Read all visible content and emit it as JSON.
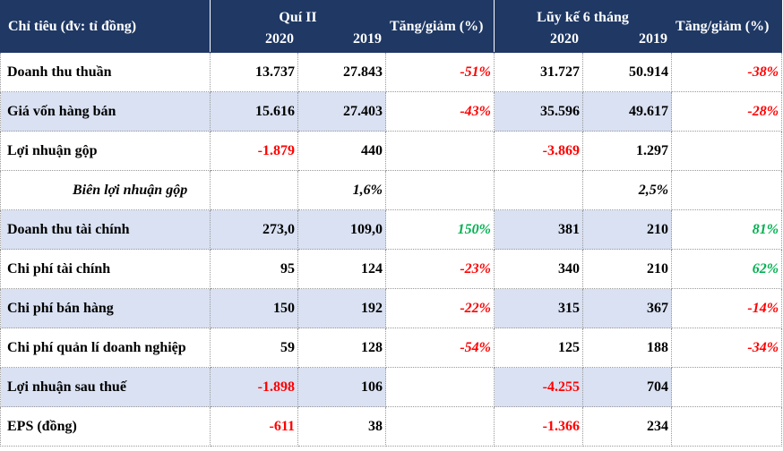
{
  "header": {
    "indicator": "Chỉ tiêu (đv: tỉ đồng)",
    "quarter_group": "Quí II",
    "ytd_group": "Lũy kế 6 tháng",
    "change_label": "Tăng/giảm (%)",
    "change_label_2": "Tăng/giảm (%)",
    "years": [
      "2020",
      "2019",
      "2020",
      "2019"
    ]
  },
  "rows": [
    {
      "label": "Doanh thu thuần",
      "q2020": "13.737",
      "q2019": "27.843",
      "q_change": "-51%",
      "y2020": "31.727",
      "y2019": "50.914",
      "y_change": "-38%"
    },
    {
      "label": "Giá vốn hàng bán",
      "q2020": "15.616",
      "q2019": "27.403",
      "q_change": "-43%",
      "y2020": "35.596",
      "y2019": "49.617",
      "y_change": "-28%"
    },
    {
      "label": "Lợi nhuận gộp",
      "q2020": "-1.879",
      "q2019": "440",
      "q_change": "",
      "y2020": "-3.869",
      "y2019": "1.297",
      "y_change": ""
    },
    {
      "label": "Biên lợi nhuận gộp",
      "q2020": "",
      "q2019": "1,6%",
      "q_change": "",
      "y2020": "",
      "y2019": "2,5%",
      "y_change": ""
    },
    {
      "label": "Doanh thu tài chính",
      "q2020": "273,0",
      "q2019": "109,0",
      "q_change": "150%",
      "y2020": "381",
      "y2019": "210",
      "y_change": "81%"
    },
    {
      "label": "Chi phí tài chính",
      "q2020": "95",
      "q2019": "124",
      "q_change": "-23%",
      "y2020": "340",
      "y2019": "210",
      "y_change": "62%"
    },
    {
      "label": "Chi phí bán hàng",
      "q2020": "150",
      "q2019": "192",
      "q_change": "-22%",
      "y2020": "315",
      "y2019": "367",
      "y_change": "-14%"
    },
    {
      "label": "Chi phí quản lí doanh nghiệp",
      "q2020": "59",
      "q2019": "128",
      "q_change": "-54%",
      "y2020": "125",
      "y2019": "188",
      "y_change": "-34%"
    },
    {
      "label": "Lợi nhuận sau thuế",
      "q2020": "-1.898",
      "q2019": "106",
      "q_change": "",
      "y2020": "-4.255",
      "y2019": "704",
      "y_change": ""
    },
    {
      "label": "EPS (đồng)",
      "q2020": "-611",
      "q2019": "38",
      "q_change": "",
      "y2020": "-1.366",
      "y2019": "234",
      "y_change": ""
    }
  ],
  "colors": {
    "header_bg": "#1f3864",
    "row_shade": "#d9e1f2",
    "negative": "#ff0000",
    "positive": "#00b050"
  }
}
